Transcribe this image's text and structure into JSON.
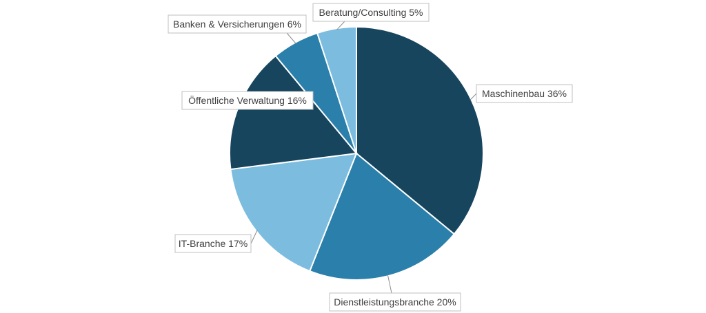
{
  "chart_data": {
    "type": "pie",
    "title": "",
    "start_angle_deg": 0,
    "direction": "clockwise",
    "legend": "none",
    "categories": [
      "Maschinenbau",
      "Dienstleistungsbranche",
      "IT-Branche",
      "Öffentliche Verwaltung",
      "Banken & Versicherungen",
      "Beratung/Consulting"
    ],
    "values": [
      36,
      20,
      17,
      16,
      6,
      5
    ],
    "colors": [
      "#17455e",
      "#2a7fab",
      "#7cbcdf",
      "#17455e",
      "#2a7fab",
      "#7cbcdf"
    ],
    "data_labels": [
      "Maschinenbau 36%",
      "Dienstleistungsbranche 20%",
      "IT-Branche 17%",
      "Öffentliche Verwaltung 16%",
      "Banken & Versicherungen 6%",
      "Beratung/Consulting 5%"
    ]
  }
}
